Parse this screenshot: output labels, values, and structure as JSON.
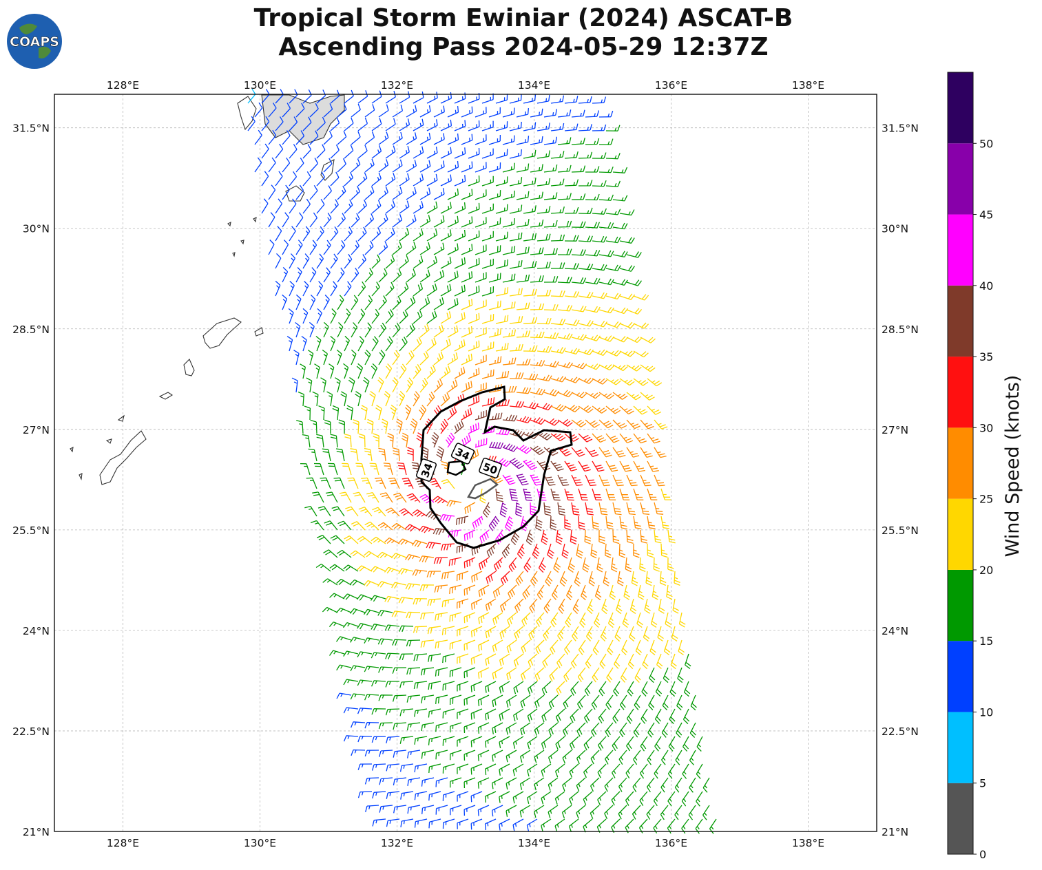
{
  "title": {
    "line1": "Tropical Storm Ewiniar (2024) ASCAT-B",
    "line2": "Ascending Pass 2024-05-29 12:37Z"
  },
  "logo": {
    "text": "COAPS",
    "icon": "globe-icon"
  },
  "map": {
    "lon_range": [
      127,
      139
    ],
    "lat_range": [
      21,
      32
    ],
    "lon_ticks": [
      "128°E",
      "130°E",
      "132°E",
      "134°E",
      "136°E",
      "138°E"
    ],
    "lat_ticks": [
      "21°N",
      "22.5°N",
      "24°N",
      "25.5°N",
      "27°N",
      "28.5°N",
      "30°N",
      "31.5°N"
    ],
    "storm_center": {
      "lon": 133.1,
      "lat": 26.2
    },
    "contour_labels": [
      "34",
      "34",
      "50"
    ],
    "grid": true
  },
  "colorbar": {
    "label": "Wind Speed (knots)",
    "ticks": [
      "0",
      "5",
      "10",
      "15",
      "20",
      "25",
      "30",
      "35",
      "40",
      "45",
      "50"
    ],
    "bins": [
      {
        "min": 0,
        "max": 5,
        "color": "#555555"
      },
      {
        "min": 5,
        "max": 10,
        "color": "#00bfff"
      },
      {
        "min": 10,
        "max": 15,
        "color": "#0040ff"
      },
      {
        "min": 15,
        "max": 20,
        "color": "#009900"
      },
      {
        "min": 20,
        "max": 25,
        "color": "#ffd700"
      },
      {
        "min": 25,
        "max": 30,
        "color": "#ff8c00"
      },
      {
        "min": 30,
        "max": 35,
        "color": "#ff1010"
      },
      {
        "min": 35,
        "max": 40,
        "color": "#7f3a2a"
      },
      {
        "min": 40,
        "max": 45,
        "color": "#ff00ff"
      },
      {
        "min": 45,
        "max": 50,
        "color": "#8800aa"
      },
      {
        "min": 50,
        "max": 55,
        "color": "#2e0060"
      }
    ]
  }
}
